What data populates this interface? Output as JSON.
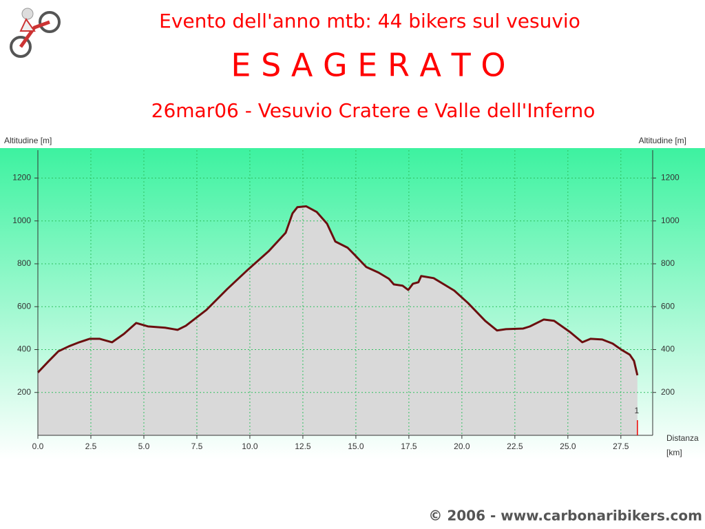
{
  "header": {
    "title": "Evento dell'anno mtb: 44 bikers sul vesuvio",
    "headline": "E S A G E R A T O",
    "subtitle": "26mar06 - Vesuvio Cratere e Valle dell'Inferno"
  },
  "chart_data": {
    "type": "area",
    "y_label_left": "Altitudine [m]",
    "y_label_right": "Altitudine [m]",
    "x_label": "Distanza",
    "x_unit": "[km]",
    "x": [
      0,
      0.49,
      0.97,
      1.46,
      1.95,
      2.44,
      2.92,
      3.5,
      4.06,
      4.64,
      5.19,
      6.0,
      6.59,
      6.98,
      7.95,
      8.93,
      9.9,
      10.88,
      11.69,
      12.01,
      12.24,
      12.66,
      13.15,
      13.64,
      14.03,
      14.61,
      14.94,
      15.49,
      16.07,
      16.56,
      16.79,
      17.2,
      17.47,
      17.69,
      17.95,
      18.08,
      18.67,
      19.64,
      20.29,
      21.1,
      21.66,
      22.08,
      22.89,
      23.21,
      23.86,
      24.35,
      25.1,
      25.68,
      26.07,
      26.62,
      27.11,
      27.53,
      27.92,
      28.12,
      28.28
    ],
    "series": [
      {
        "name": "Altitudine",
        "color": "#6b0f0f",
        "values": [
          293,
          344,
          392,
          415,
          434,
          450,
          450,
          434,
          473,
          524,
          508,
          502,
          492,
          511,
          585,
          682,
          772,
          858,
          945,
          1035,
          1064,
          1068,
          1042,
          987,
          904,
          875,
          842,
          785,
          759,
          730,
          704,
          698,
          678,
          707,
          714,
          743,
          733,
          675,
          617,
          534,
          489,
          495,
          498,
          508,
          540,
          534,
          482,
          434,
          450,
          447,
          428,
          399,
          376,
          347,
          280
        ]
      }
    ],
    "fill_color": "#d9d9d9",
    "marker": {
      "x": 28.28,
      "label": "1"
    },
    "xlim": [
      0,
      29
    ],
    "ylim": [
      0,
      1330
    ],
    "xticks": [
      {
        "value": 0,
        "label": "0.0"
      },
      2.5,
      {
        "value": 5,
        "label": "5.0"
      },
      7.5,
      {
        "value": 10,
        "label": "10.0"
      },
      12.5,
      {
        "value": 15,
        "label": "15.0"
      },
      17.5,
      {
        "value": 20,
        "label": "20.0"
      },
      22.5,
      {
        "value": 25,
        "label": "25.0"
      },
      27.5
    ],
    "yticks": [
      200,
      400,
      600,
      800,
      1000,
      1200
    ],
    "grid": true
  },
  "footer": {
    "copyright": "© 2006 - www.carbonaribikers.com"
  }
}
